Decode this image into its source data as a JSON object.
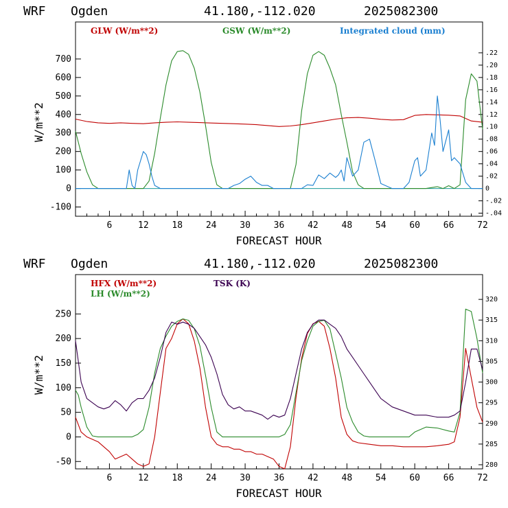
{
  "header": {
    "model": "WRF",
    "site": "Ogden",
    "coords": "41.180,-112.020",
    "run": "2025082300"
  },
  "colors": {
    "red": "#c00000",
    "green": "#2a8a2a",
    "blue": "#1a7fd0",
    "purple": "#3a0050",
    "zero": "#1a9a9a"
  },
  "chart_data": [
    {
      "type": "line",
      "xlabel": "FORECAST HOUR",
      "ylabel": "W/m**2",
      "xlim": [
        0,
        72
      ],
      "ylim": [
        -150,
        900
      ],
      "y2lim": [
        -0.045,
        0.27
      ],
      "xticks": [
        "6",
        "12",
        "18",
        "24",
        "30",
        "36",
        "42",
        "48",
        "54",
        "60",
        "66",
        "72"
      ],
      "yticks": [
        "-100",
        "0",
        "100",
        "200",
        "300",
        "400",
        "500",
        "600",
        "700"
      ],
      "y2ticks": [
        ".22",
        ".20",
        ".18",
        ".16",
        ".14",
        ".12",
        ".10",
        ".08",
        ".06",
        ".04",
        ".02",
        "0",
        "-.02",
        "-.04"
      ],
      "series": [
        {
          "name": "GLW (W/m**2)",
          "color": "red",
          "axis": "left",
          "x": [
            0,
            2,
            4,
            6,
            8,
            10,
            12,
            14,
            16,
            18,
            20,
            22,
            24,
            26,
            28,
            30,
            32,
            34,
            36,
            38,
            40,
            42,
            44,
            46,
            48,
            50,
            52,
            54,
            56,
            58,
            60,
            62,
            64,
            66,
            68,
            70,
            72
          ],
          "y": [
            375,
            362,
            355,
            352,
            355,
            352,
            350,
            355,
            358,
            360,
            358,
            356,
            354,
            352,
            350,
            348,
            345,
            340,
            335,
            338,
            345,
            355,
            365,
            375,
            382,
            384,
            380,
            374,
            370,
            372,
            395,
            400,
            398,
            396,
            392,
            365,
            358
          ]
        },
        {
          "name": "GSW (W/m**2)",
          "color": "green",
          "axis": "left",
          "x": [
            0,
            1,
            2,
            3,
            4,
            5,
            6,
            12,
            13,
            14,
            15,
            16,
            17,
            18,
            19,
            20,
            21,
            22,
            23,
            24,
            25,
            26,
            38,
            39,
            40,
            41,
            42,
            43,
            44,
            45,
            46,
            47,
            48,
            49,
            50,
            51,
            52,
            62,
            64,
            65,
            66,
            67,
            68,
            69,
            70,
            71,
            72
          ],
          "y": [
            310,
            190,
            90,
            20,
            0,
            0,
            0,
            0,
            40,
            190,
            380,
            560,
            690,
            740,
            745,
            725,
            650,
            520,
            340,
            140,
            20,
            0,
            0,
            130,
            420,
            620,
            720,
            740,
            720,
            650,
            560,
            400,
            250,
            90,
            20,
            0,
            0,
            0,
            10,
            0,
            15,
            0,
            20,
            480,
            620,
            580,
            320
          ]
        },
        {
          "name": "Integrated cloud (mm)",
          "color": "blue",
          "axis": "right",
          "x": [
            0,
            9,
            9.5,
            10,
            10.5,
            11,
            12,
            12.5,
            13,
            13.5,
            14,
            15,
            27,
            28,
            29,
            30,
            31,
            32,
            33,
            34,
            35,
            40,
            41,
            42,
            43,
            44,
            45,
            46,
            46.5,
            47,
            47.5,
            48,
            49,
            50,
            51,
            52,
            53,
            54,
            56,
            58,
            59,
            60,
            60.5,
            61,
            62,
            63,
            63.5,
            64,
            64.5,
            65,
            66,
            66.5,
            67,
            68,
            69,
            70,
            72
          ],
          "y": [
            0,
            0,
            0.03,
            0.005,
            0,
            0.03,
            0.06,
            0.055,
            0.04,
            0.02,
            0.005,
            0,
            0,
            0.005,
            0.008,
            0.015,
            0.02,
            0.01,
            0.005,
            0.005,
            0,
            0,
            0.006,
            0.005,
            0.022,
            0.016,
            0.025,
            0.018,
            0.022,
            0.03,
            0.012,
            0.05,
            0.02,
            0.03,
            0.075,
            0.08,
            0.045,
            0.008,
            0,
            0,
            0.01,
            0.045,
            0.05,
            0.02,
            0.03,
            0.09,
            0.07,
            0.15,
            0.11,
            0.06,
            0.095,
            0.045,
            0.05,
            0.04,
            0.01,
            0,
            0
          ]
        }
      ]
    },
    {
      "type": "line",
      "xlabel": "FORECAST HOUR",
      "ylabel": "W/m**2",
      "xlim": [
        0,
        72
      ],
      "ylim": [
        -65,
        330
      ],
      "y2lim": [
        279,
        326
      ],
      "xticks": [
        "6",
        "12",
        "18",
        "24",
        "30",
        "36",
        "42",
        "48",
        "54",
        "60",
        "66",
        "72"
      ],
      "yticks": [
        "-50",
        "0",
        "50",
        "100",
        "150",
        "200",
        "250"
      ],
      "y2ticks": [
        "320",
        "315",
        "310",
        "305",
        "300",
        "295",
        "290",
        "285",
        "280"
      ],
      "series": [
        {
          "name": "HFX (W/m**2)",
          "color": "red",
          "axis": "left",
          "x": [
            0,
            1,
            2,
            3,
            4,
            5,
            6,
            7,
            8,
            9,
            10,
            11,
            12,
            13,
            14,
            15,
            16,
            17,
            18,
            19,
            20,
            21,
            22,
            23,
            24,
            25,
            26,
            27,
            28,
            29,
            30,
            31,
            32,
            33,
            34,
            35,
            36,
            37,
            38,
            39,
            40,
            41,
            42,
            43,
            44,
            45,
            46,
            47,
            48,
            49,
            50,
            52,
            54,
            56,
            58,
            60,
            62,
            64,
            66,
            67,
            68,
            69,
            70,
            71,
            72
          ],
          "y": [
            40,
            10,
            0,
            -5,
            -10,
            -20,
            -30,
            -45,
            -40,
            -35,
            -45,
            -55,
            -60,
            -55,
            0,
            90,
            180,
            200,
            230,
            240,
            230,
            195,
            140,
            60,
            0,
            -15,
            -20,
            -20,
            -25,
            -25,
            -30,
            -30,
            -35,
            -35,
            -40,
            -45,
            -60,
            -65,
            -20,
            80,
            160,
            210,
            230,
            235,
            225,
            180,
            120,
            40,
            5,
            -8,
            -12,
            -15,
            -18,
            -18,
            -20,
            -20,
            -20,
            -18,
            -15,
            -10,
            40,
            180,
            120,
            60,
            30
          ]
        },
        {
          "name": "LH (W/m**2)",
          "color": "green",
          "axis": "left",
          "x": [
            0,
            0.5,
            1,
            2,
            3,
            4,
            5,
            10,
            11,
            12,
            13,
            14,
            15,
            16,
            17,
            18,
            19,
            20,
            21,
            22,
            23,
            24,
            25,
            26,
            36,
            37,
            38,
            39,
            40,
            41,
            42,
            43,
            44,
            45,
            46,
            47,
            48,
            49,
            50,
            51,
            52,
            59,
            60,
            62,
            64,
            66,
            67,
            68,
            69,
            70,
            71,
            72
          ],
          "y": [
            95,
            85,
            60,
            20,
            2,
            0,
            0,
            0,
            5,
            15,
            60,
            130,
            180,
            205,
            225,
            235,
            240,
            237,
            220,
            185,
            125,
            60,
            10,
            0,
            0,
            5,
            25,
            90,
            155,
            195,
            225,
            235,
            237,
            220,
            170,
            120,
            60,
            30,
            10,
            2,
            0,
            0,
            10,
            20,
            18,
            12,
            10,
            50,
            260,
            255,
            200,
            130
          ]
        },
        {
          "name": "TSK (K)",
          "color": "purple",
          "axis": "right",
          "x": [
            0,
            0.5,
            1,
            2,
            3,
            4,
            5,
            6,
            7,
            8,
            9,
            10,
            11,
            12,
            13,
            14,
            15,
            16,
            17,
            18,
            19,
            20,
            21,
            22,
            23,
            24,
            25,
            26,
            27,
            28,
            29,
            30,
            31,
            32,
            33,
            34,
            35,
            36,
            37,
            38,
            39,
            40,
            41,
            42,
            43,
            44,
            45,
            46,
            47,
            48,
            49,
            50,
            51,
            52,
            53,
            54,
            56,
            58,
            60,
            62,
            64,
            66,
            67,
            68,
            69,
            70,
            71,
            72
          ],
          "y": [
            310,
            305,
            300,
            296,
            295,
            294,
            293.5,
            294,
            295.5,
            294.5,
            293,
            295,
            296,
            296,
            298,
            301,
            306,
            312,
            314.5,
            314,
            314.5,
            314,
            313,
            311,
            309,
            306,
            302,
            297,
            294.5,
            293.5,
            294,
            293,
            293,
            292.5,
            292,
            291,
            292,
            291.5,
            292,
            296,
            302,
            308,
            312,
            314,
            315,
            315,
            314,
            313,
            311,
            308,
            306,
            304,
            302,
            300,
            298,
            296,
            294,
            293,
            292,
            292,
            291.5,
            291.5,
            292,
            293,
            300,
            308,
            308,
            303
          ]
        }
      ]
    }
  ],
  "legends": {
    "top": {
      "glw": "GLW (W/m**2)",
      "gsw": "GSW (W/m**2)",
      "cloud": "Integrated cloud (mm)"
    },
    "bottom": {
      "hfx": "HFX (W/m**2)",
      "lh": "LH  (W/m**2)",
      "tsk": "TSK (K)"
    }
  }
}
